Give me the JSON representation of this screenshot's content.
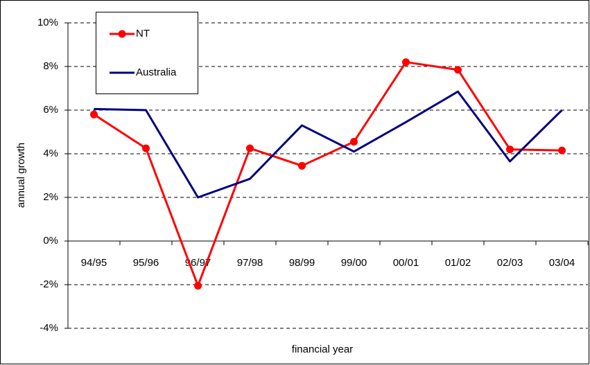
{
  "chart_data": {
    "type": "line",
    "x_label": "financial year",
    "y_label": "annual growth",
    "categories": [
      "94/95",
      "95/96",
      "96/97",
      "97/98",
      "98/99",
      "99/00",
      "00/01",
      "01/02",
      "02/03",
      "03/04"
    ],
    "series": [
      {
        "name": "NT",
        "color": "#ff0000",
        "marker": true,
        "values": [
          5.8,
          4.25,
          -2.05,
          4.25,
          3.45,
          4.55,
          8.2,
          7.85,
          4.2,
          4.15
        ]
      },
      {
        "name": "Australia",
        "color": "#000080",
        "marker": false,
        "values": [
          6.05,
          6.0,
          2.0,
          2.85,
          5.3,
          4.1,
          5.45,
          6.85,
          3.65,
          6.0
        ]
      }
    ],
    "ylim": [
      -4,
      10
    ],
    "yticks": [
      {
        "value": -4,
        "label": "-4%"
      },
      {
        "value": -2,
        "label": "-2%"
      },
      {
        "value": 0,
        "label": "0%"
      },
      {
        "value": 2,
        "label": "2%"
      },
      {
        "value": 4,
        "label": "4%"
      },
      {
        "value": 6,
        "label": "6%"
      },
      {
        "value": 8,
        "label": "8%"
      },
      {
        "value": 10,
        "label": "10%"
      }
    ],
    "grid": true,
    "legend": "upper left"
  }
}
